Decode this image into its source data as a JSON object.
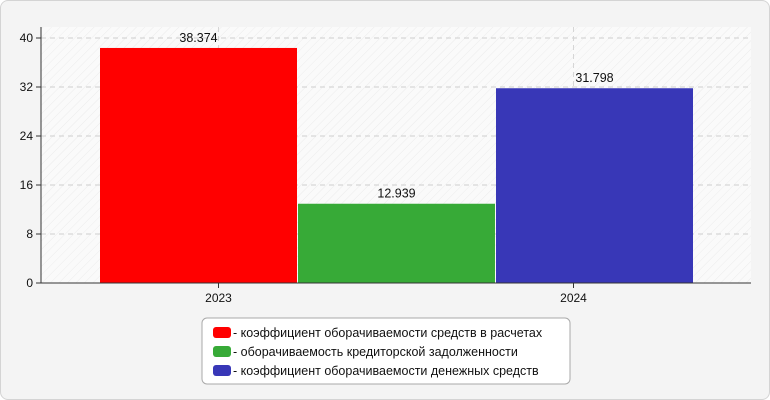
{
  "chart_data": {
    "type": "bar",
    "title": "",
    "xlabel": "",
    "ylabel": "",
    "ylim": [
      0,
      40
    ],
    "yticks": [
      0,
      8,
      16,
      24,
      32,
      40
    ],
    "grid": true,
    "legend_position": "bottom",
    "categories": [
      "2023",
      "2024"
    ],
    "series": [
      {
        "name": "- коэффициент оборачиваемости средств в расчетах",
        "color": "#ff0000",
        "values": [
          38.374,
          null
        ]
      },
      {
        "name": "- оборачиваемость кредиторской задолженности",
        "color": "#37aa37",
        "values": [
          12.939,
          null
        ]
      },
      {
        "name": "- коэффициент оборачиваемости денежных средств",
        "color": "#3837b7",
        "values": [
          null,
          31.798
        ]
      }
    ]
  }
}
